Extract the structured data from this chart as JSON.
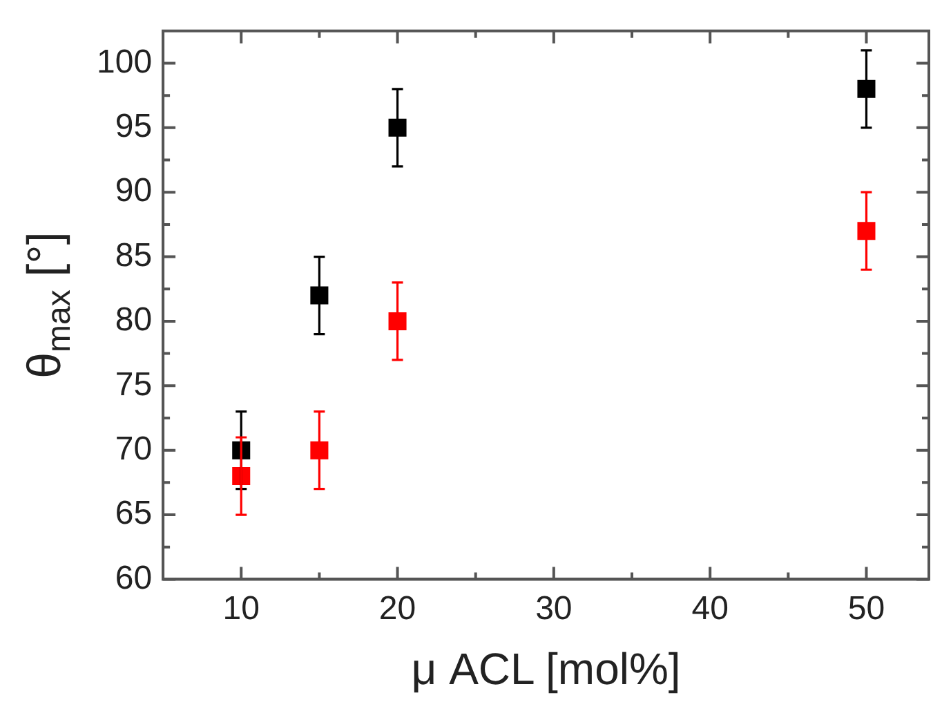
{
  "chart_data": {
    "type": "scatter",
    "xlabel": "μ ACL [mol%]",
    "ylabel": "θ$_{max}$ [°]",
    "x": [
      10,
      15,
      20,
      50
    ],
    "series": [
      {
        "color": "#000000",
        "values": [
          70,
          82,
          95,
          98
        ],
        "errors": [
          3,
          3,
          3,
          3
        ]
      },
      {
        "color": "#ff0000",
        "values": [
          68,
          70,
          80,
          87
        ],
        "errors": [
          3,
          3,
          3,
          3
        ]
      }
    ],
    "xlim": [
      5,
      54
    ],
    "xticks": [
      10,
      {
        "value": 15,
        "label": null
      },
      20,
      {
        "value": 25,
        "label": null
      },
      30,
      {
        "value": 35,
        "label": null
      },
      40,
      {
        "value": 45,
        "label": null
      },
      50
    ],
    "ylim": [
      60,
      102.5
    ],
    "yticks": [
      60,
      {
        "value": 62.5,
        "label": null
      },
      65,
      {
        "value": 67.5,
        "label": null
      },
      70,
      {
        "value": 72.5,
        "label": null
      },
      75,
      {
        "value": 77.5,
        "label": null
      },
      80,
      {
        "value": 82.5,
        "label": null
      },
      85,
      {
        "value": 87.5,
        "label": null
      },
      90,
      {
        "value": 92.5,
        "label": null
      },
      95,
      {
        "value": 97.5,
        "label": null
      },
      100
    ],
    "grid": false,
    "legend": false,
    "marker": "square"
  }
}
